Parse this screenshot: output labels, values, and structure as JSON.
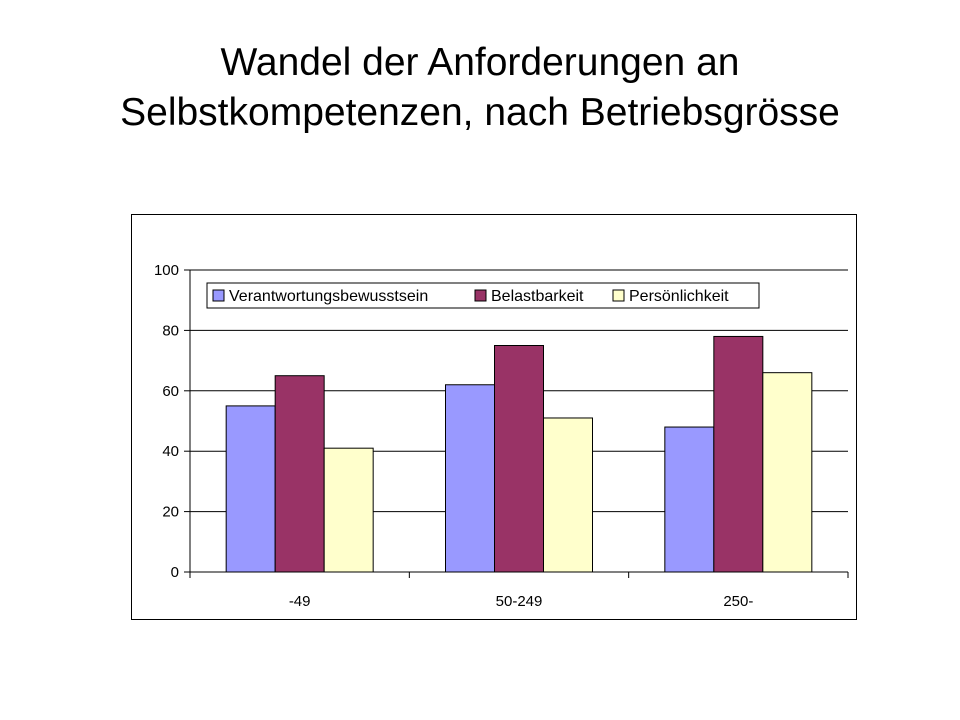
{
  "slide": {
    "title_line1": "Wandel der Anforderungen an",
    "title_line2": "Selbstkompetenzen, nach Betriebsgrösse"
  },
  "chart_data": {
    "type": "bar",
    "categories": [
      "-49",
      "50-249",
      "250-"
    ],
    "series": [
      {
        "name": "Verantwortungsbewusstsein",
        "values": [
          55,
          62,
          48
        ],
        "color": "#9999ff"
      },
      {
        "name": "Belastbarkeit",
        "values": [
          65,
          75,
          78
        ],
        "color": "#993366"
      },
      {
        "name": "Persönlichkeit",
        "values": [
          41,
          51,
          66
        ],
        "color": "#ffffcc"
      }
    ],
    "ylim": [
      0,
      100
    ],
    "yticks": [
      0,
      20,
      40,
      60,
      80,
      100
    ],
    "grid": true,
    "legend_position": "top",
    "title": "",
    "xlabel": "",
    "ylabel": ""
  }
}
